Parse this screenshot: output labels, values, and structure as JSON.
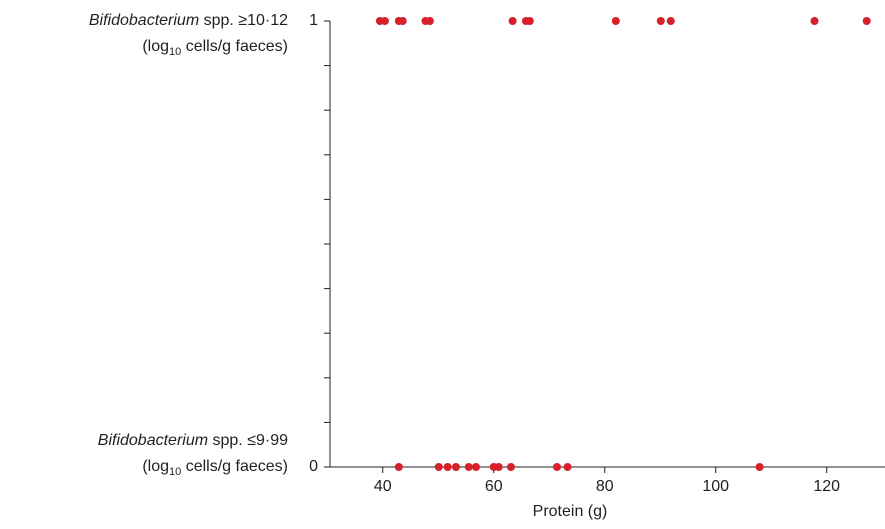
{
  "chart_data": {
    "type": "scatter",
    "xlabel": "Protein (g)",
    "xlim": [
      30.5,
      130.5
    ],
    "xticks": [
      40,
      60,
      80,
      100,
      120
    ],
    "ylim": [
      0,
      1
    ],
    "yticks": [
      0,
      1
    ],
    "yminorticks": [
      0.1,
      0.2,
      0.3,
      0.4,
      0.5,
      0.6,
      0.7,
      0.8,
      0.9
    ],
    "y_category_labels": [
      {
        "value": 1,
        "italic": "Bifidobacterium",
        "rest": " spp. ≥10·12",
        "unit_pre": "(log",
        "unit_sub": "10",
        "unit_post": " cells/g faeces)"
      },
      {
        "value": 0,
        "italic": "Bifidobacterium",
        "rest": " spp. ≤9·99",
        "unit_pre": "(log",
        "unit_sub": "10",
        "unit_post": " cells/g faeces)"
      }
    ],
    "color": "#d7202a",
    "x": [
      39.5,
      40.4,
      42.9,
      43.6,
      47.7,
      48.5,
      63.4,
      65.8,
      66.5,
      82.0,
      90.1,
      91.9,
      117.8,
      127.2,
      42.9,
      50.1,
      51.7,
      53.2,
      55.5,
      56.8,
      60.0,
      60.9,
      63.1,
      71.4,
      73.3,
      107.9
    ],
    "values": [
      1,
      1,
      1,
      1,
      1,
      1,
      1,
      1,
      1,
      1,
      1,
      1,
      1,
      1,
      0,
      0,
      0,
      0,
      0,
      0,
      0,
      0,
      0,
      0,
      0,
      0
    ]
  }
}
